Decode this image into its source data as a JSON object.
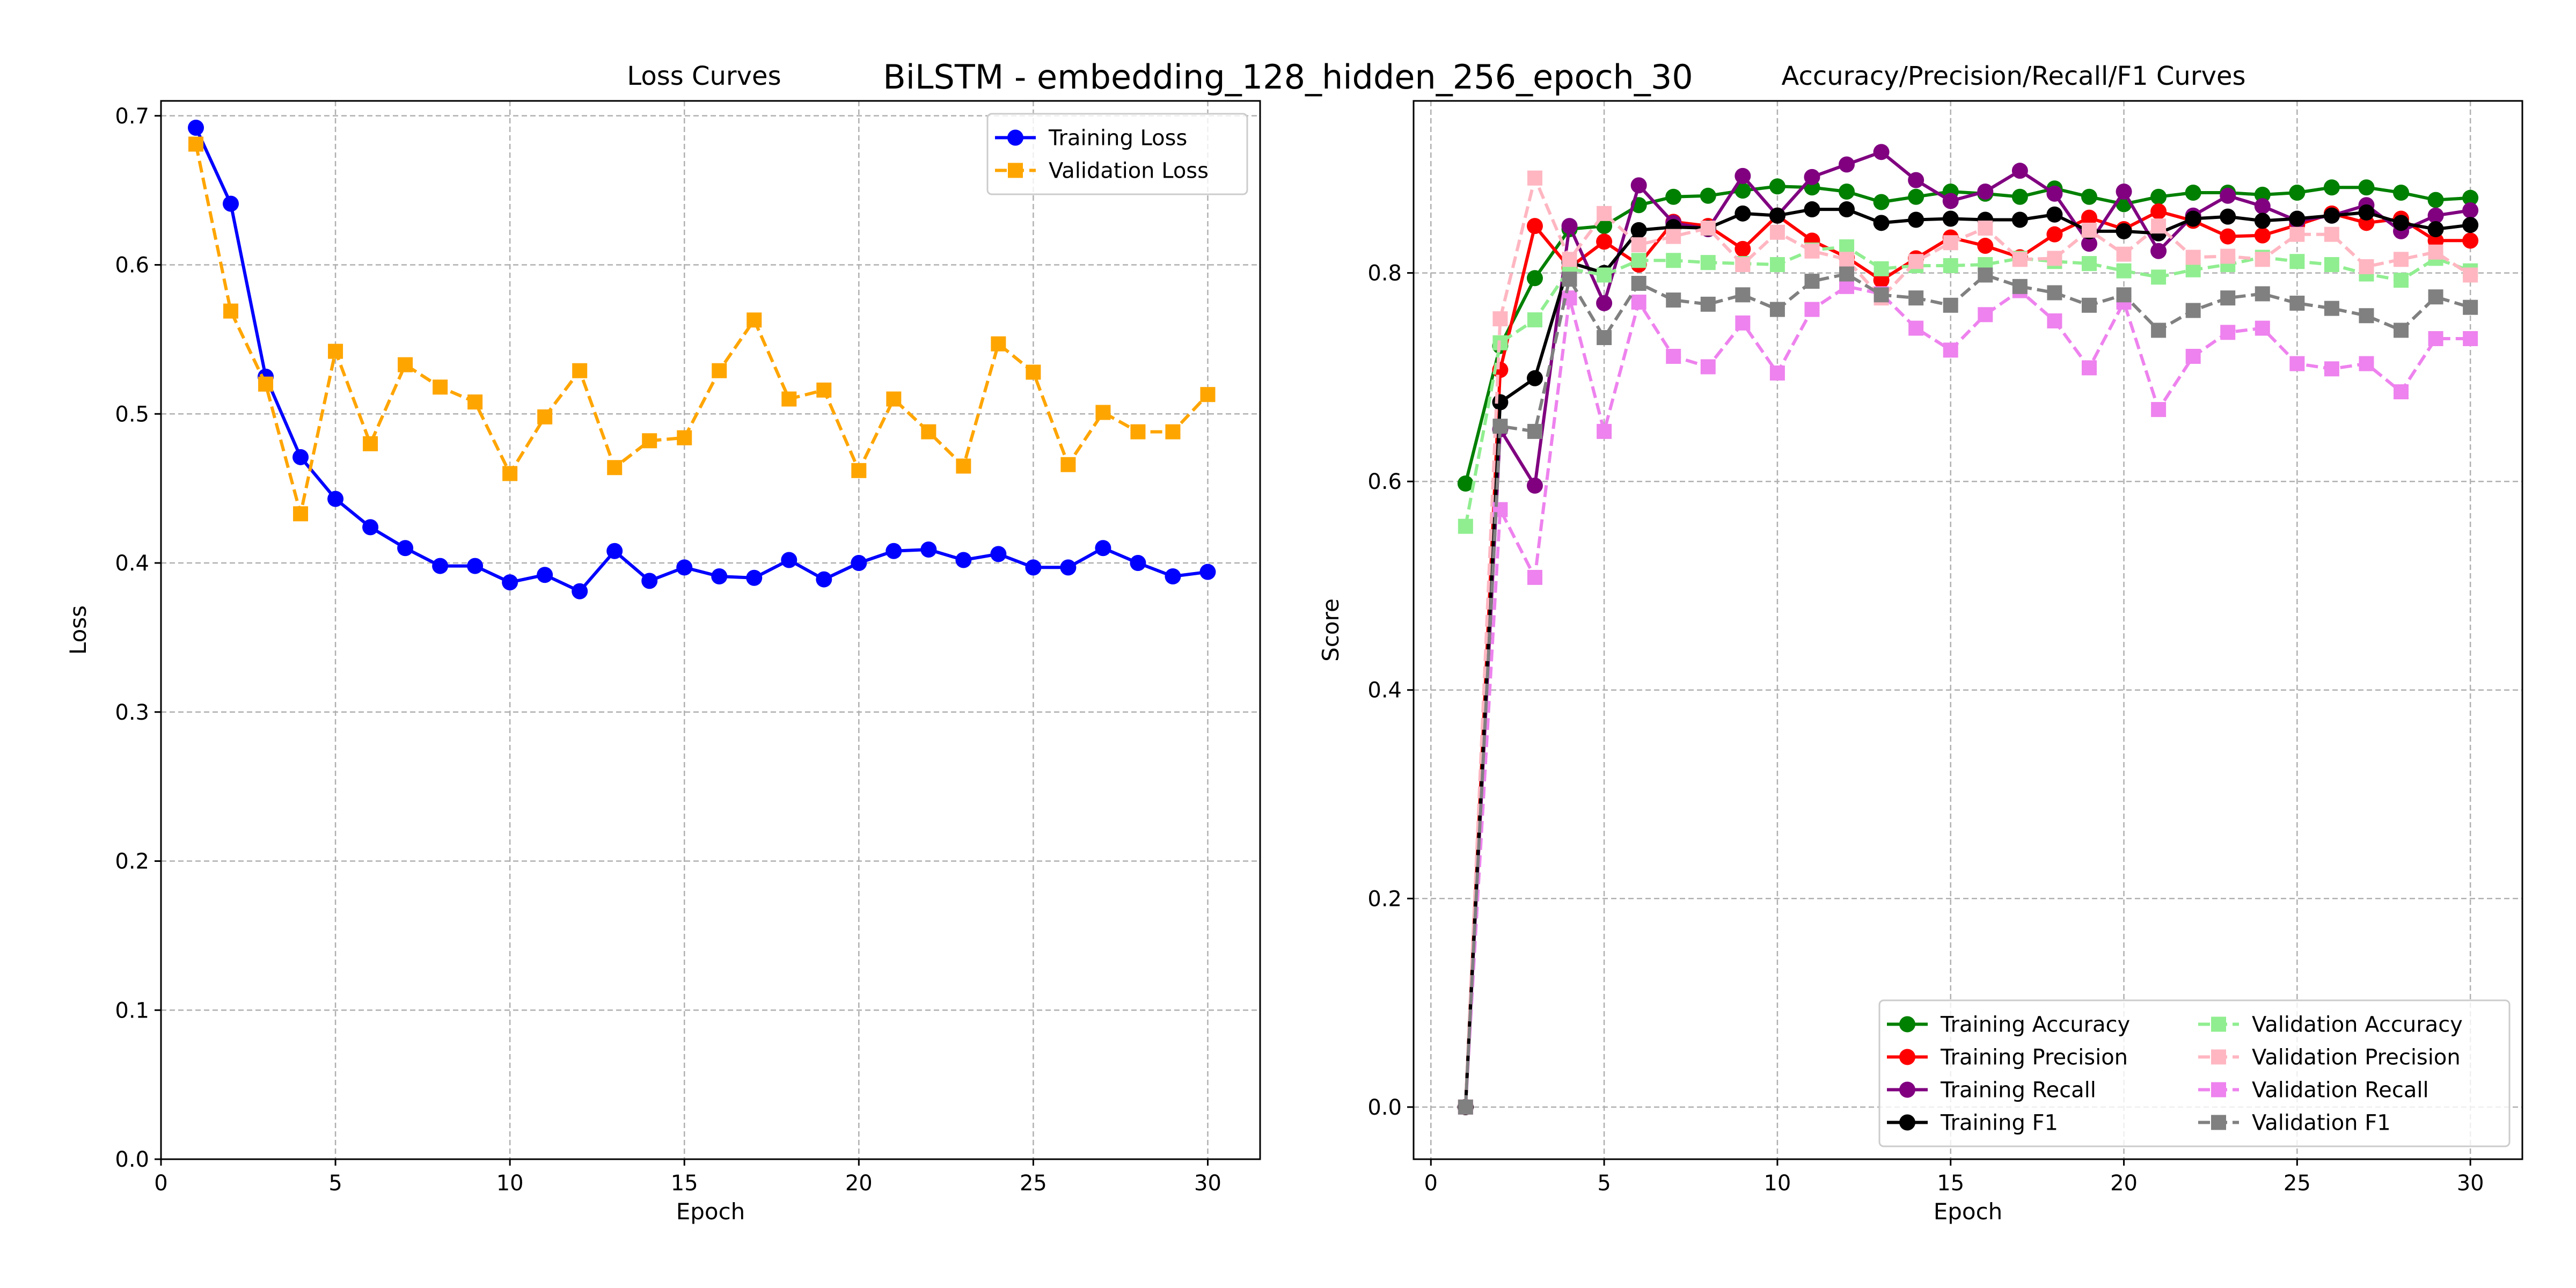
{
  "figure_title": "BiLSTM - embedding_128_hidden_256_epoch_30",
  "chart_data": [
    {
      "type": "line",
      "title": "Loss Curves",
      "xlabel": "Epoch",
      "ylabel": "Loss",
      "xlim": [
        0,
        31.5
      ],
      "ylim": [
        0.0,
        0.71
      ],
      "xticks": [
        0,
        5,
        10,
        15,
        20,
        25,
        30
      ],
      "yticks": [
        0.0,
        0.1,
        0.2,
        0.3,
        0.4,
        0.5,
        0.6,
        0.7
      ],
      "tick_decimals": 1,
      "grid": true,
      "legend": {
        "placement": "upper right",
        "columns": 1
      },
      "x": [
        1,
        2,
        3,
        4,
        5,
        6,
        7,
        8,
        9,
        10,
        11,
        12,
        13,
        14,
        15,
        16,
        17,
        18,
        19,
        20,
        21,
        22,
        23,
        24,
        25,
        26,
        27,
        28,
        29,
        30
      ],
      "series": [
        {
          "name": "Training Loss",
          "color": "#0000ff",
          "marker": "circle",
          "linestyle": "solid",
          "values": [
            0.692,
            0.641,
            0.525,
            0.471,
            0.443,
            0.424,
            0.41,
            0.398,
            0.398,
            0.387,
            0.392,
            0.381,
            0.408,
            0.388,
            0.397,
            0.391,
            0.39,
            0.402,
            0.389,
            0.4,
            0.408,
            0.409,
            0.402,
            0.406,
            0.397,
            0.397,
            0.41,
            0.4,
            0.391,
            0.394
          ]
        },
        {
          "name": "Validation Loss",
          "color": "#ffa500",
          "marker": "square",
          "linestyle": "dashed",
          "values": [
            0.681,
            0.569,
            0.52,
            0.433,
            0.542,
            0.48,
            0.533,
            0.518,
            0.508,
            0.46,
            0.498,
            0.529,
            0.464,
            0.482,
            0.484,
            0.529,
            0.563,
            0.51,
            0.516,
            0.462,
            0.51,
            0.488,
            0.465,
            0.547,
            0.528,
            0.466,
            0.501,
            0.488,
            0.488,
            0.513
          ]
        }
      ]
    },
    {
      "type": "line",
      "title": "Accuracy/Precision/Recall/F1 Curves",
      "xlabel": "Epoch",
      "ylabel": "Score",
      "xlim": [
        -0.5,
        31.5
      ],
      "ylim": [
        -0.05,
        0.965
      ],
      "xticks": [
        0,
        5,
        10,
        15,
        20,
        25,
        30
      ],
      "yticks": [
        0.0,
        0.2,
        0.4,
        0.6,
        0.8
      ],
      "tick_decimals": 1,
      "grid": true,
      "legend": {
        "placement": "lower right",
        "columns": 2
      },
      "x": [
        1,
        2,
        3,
        4,
        5,
        6,
        7,
        8,
        9,
        10,
        11,
        12,
        13,
        14,
        15,
        16,
        17,
        18,
        19,
        20,
        21,
        22,
        23,
        24,
        25,
        26,
        27,
        28,
        29,
        30
      ],
      "series": [
        {
          "name": "Training Accuracy",
          "color": "#008000",
          "marker": "circle",
          "linestyle": "solid",
          "values": [
            0.598,
            0.73,
            0.795,
            0.842,
            0.845,
            0.865,
            0.873,
            0.874,
            0.879,
            0.883,
            0.882,
            0.878,
            0.868,
            0.873,
            0.878,
            0.876,
            0.873,
            0.881,
            0.873,
            0.866,
            0.873,
            0.877,
            0.877,
            0.875,
            0.877,
            0.882,
            0.882,
            0.877,
            0.87,
            0.872
          ]
        },
        {
          "name": "Training Precision",
          "color": "#ff0000",
          "marker": "circle",
          "linestyle": "solid",
          "values": [
            0.0,
            0.707,
            0.845,
            0.805,
            0.83,
            0.808,
            0.849,
            0.845,
            0.823,
            0.855,
            0.831,
            0.815,
            0.793,
            0.814,
            0.834,
            0.826,
            0.815,
            0.837,
            0.853,
            0.842,
            0.859,
            0.85,
            0.835,
            0.836,
            0.846,
            0.857,
            0.848,
            0.852,
            0.831,
            0.831
          ]
        },
        {
          "name": "Training Recall",
          "color": "#800080",
          "marker": "circle",
          "linestyle": "solid",
          "values": [
            0.0,
            0.65,
            0.596,
            0.845,
            0.771,
            0.884,
            0.848,
            0.842,
            0.893,
            0.855,
            0.892,
            0.904,
            0.916,
            0.889,
            0.869,
            0.878,
            0.898,
            0.876,
            0.828,
            0.878,
            0.821,
            0.855,
            0.874,
            0.864,
            0.85,
            0.855,
            0.865,
            0.84,
            0.855,
            0.86
          ]
        },
        {
          "name": "Training F1",
          "color": "#000000",
          "marker": "circle",
          "linestyle": "solid",
          "values": [
            0.0,
            0.676,
            0.699,
            0.81,
            0.8,
            0.841,
            0.844,
            0.843,
            0.857,
            0.855,
            0.861,
            0.861,
            0.848,
            0.851,
            0.852,
            0.851,
            0.851,
            0.856,
            0.84,
            0.84,
            0.838,
            0.852,
            0.854,
            0.85,
            0.852,
            0.855,
            0.858,
            0.848,
            0.842,
            0.846
          ]
        },
        {
          "name": "Validation Accuracy",
          "color": "#90ee90",
          "marker": "square",
          "linestyle": "dashed",
          "values": [
            0.557,
            0.733,
            0.755,
            0.804,
            0.798,
            0.812,
            0.812,
            0.81,
            0.809,
            0.808,
            0.822,
            0.825,
            0.804,
            0.807,
            0.807,
            0.808,
            0.814,
            0.811,
            0.809,
            0.802,
            0.796,
            0.803,
            0.808,
            0.815,
            0.811,
            0.808,
            0.799,
            0.793,
            0.814,
            0.802
          ]
        },
        {
          "name": "Validation Precision",
          "color": "#ffb6c1",
          "marker": "square",
          "linestyle": "dashed",
          "values": [
            0.0,
            0.756,
            0.891,
            0.813,
            0.857,
            0.827,
            0.835,
            0.843,
            0.808,
            0.839,
            0.821,
            0.813,
            0.776,
            0.811,
            0.829,
            0.843,
            0.813,
            0.814,
            0.841,
            0.818,
            0.845,
            0.815,
            0.816,
            0.813,
            0.837,
            0.837,
            0.806,
            0.813,
            0.82,
            0.798
          ]
        },
        {
          "name": "Validation Recall",
          "color": "#ee82ee",
          "marker": "square",
          "linestyle": "dashed",
          "values": [
            0.0,
            0.573,
            0.508,
            0.776,
            0.648,
            0.772,
            0.72,
            0.71,
            0.752,
            0.704,
            0.765,
            0.787,
            0.78,
            0.747,
            0.726,
            0.76,
            0.783,
            0.754,
            0.709,
            0.772,
            0.669,
            0.72,
            0.743,
            0.747,
            0.713,
            0.708,
            0.713,
            0.686,
            0.737,
            0.737
          ]
        },
        {
          "name": "Validation F1",
          "color": "#808080",
          "marker": "square",
          "linestyle": "dashed",
          "values": [
            0.0,
            0.653,
            0.648,
            0.794,
            0.738,
            0.79,
            0.774,
            0.77,
            0.779,
            0.765,
            0.792,
            0.799,
            0.779,
            0.776,
            0.769,
            0.798,
            0.787,
            0.781,
            0.769,
            0.779,
            0.745,
            0.764,
            0.776,
            0.78,
            0.771,
            0.766,
            0.759,
            0.745,
            0.777,
            0.767
          ]
        }
      ]
    }
  ]
}
